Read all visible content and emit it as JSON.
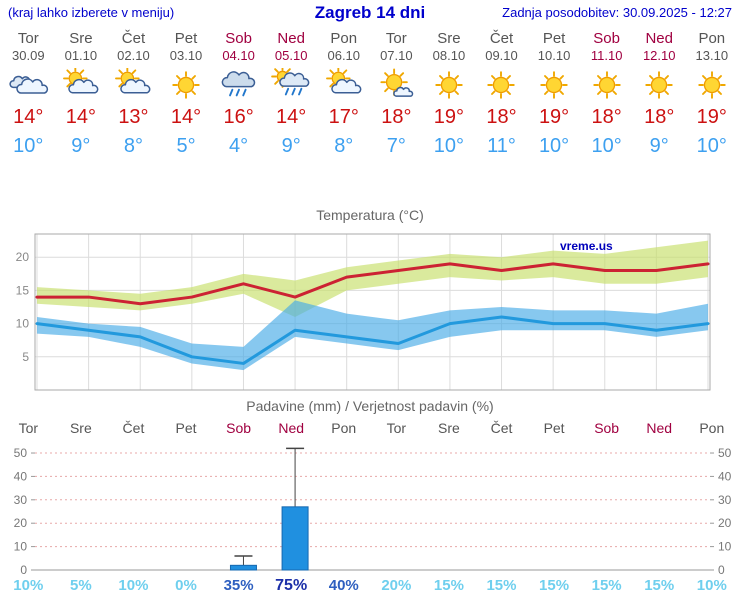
{
  "header": {
    "note": "(kraj lahko izberete v meniju)",
    "title": "Zagreb 14 dni",
    "updated": "Zadnja posodobitev: 30.09.2025 - 12:27"
  },
  "days": [
    {
      "name": "Tor",
      "date": "30.09",
      "weekend": false,
      "icon": "cloudy",
      "high": "14°",
      "low": "10°",
      "precip_prob": "10%",
      "prob_level": "low"
    },
    {
      "name": "Sre",
      "date": "01.10",
      "weekend": false,
      "icon": "partly-cloudy",
      "high": "14°",
      "low": "9°",
      "precip_prob": "5%",
      "prob_level": "low"
    },
    {
      "name": "Čet",
      "date": "02.10",
      "weekend": false,
      "icon": "partly-cloudy",
      "high": "13°",
      "low": "8°",
      "precip_prob": "10%",
      "prob_level": "low"
    },
    {
      "name": "Pet",
      "date": "03.10",
      "weekend": false,
      "icon": "sunny",
      "high": "14°",
      "low": "5°",
      "precip_prob": "0%",
      "prob_level": "low"
    },
    {
      "name": "Sob",
      "date": "04.10",
      "weekend": true,
      "icon": "rain",
      "high": "16°",
      "low": "4°",
      "precip_prob": "35%",
      "prob_level": "mid"
    },
    {
      "name": "Ned",
      "date": "05.10",
      "weekend": true,
      "icon": "sun-rain",
      "high": "14°",
      "low": "9°",
      "precip_prob": "75%",
      "prob_level": "high"
    },
    {
      "name": "Pon",
      "date": "06.10",
      "weekend": false,
      "icon": "partly-cloudy",
      "high": "17°",
      "low": "8°",
      "precip_prob": "40%",
      "prob_level": "mid"
    },
    {
      "name": "Tor",
      "date": "07.10",
      "weekend": false,
      "icon": "mostly-sunny",
      "high": "18°",
      "low": "7°",
      "precip_prob": "20%",
      "prob_level": "low"
    },
    {
      "name": "Sre",
      "date": "08.10",
      "weekend": false,
      "icon": "sunny",
      "high": "19°",
      "low": "10°",
      "precip_prob": "15%",
      "prob_level": "low"
    },
    {
      "name": "Čet",
      "date": "09.10",
      "weekend": false,
      "icon": "sunny",
      "high": "18°",
      "low": "11°",
      "precip_prob": "15%",
      "prob_level": "low"
    },
    {
      "name": "Pet",
      "date": "10.10",
      "weekend": false,
      "icon": "sunny",
      "high": "19°",
      "low": "10°",
      "precip_prob": "15%",
      "prob_level": "low"
    },
    {
      "name": "Sob",
      "date": "11.10",
      "weekend": true,
      "icon": "sunny",
      "high": "18°",
      "low": "10°",
      "precip_prob": "15%",
      "prob_level": "low"
    },
    {
      "name": "Ned",
      "date": "12.10",
      "weekend": true,
      "icon": "sunny",
      "high": "18°",
      "low": "9°",
      "precip_prob": "15%",
      "prob_level": "low"
    },
    {
      "name": "Pon",
      "date": "13.10",
      "weekend": false,
      "icon": "sunny",
      "high": "19°",
      "low": "10°",
      "precip_prob": "10%",
      "prob_level": "low"
    }
  ],
  "chart_data": [
    {
      "type": "line",
      "title": "Temperatura (°C)",
      "watermark": "vreme.us",
      "categories": [
        "Tor",
        "Sre",
        "Čet",
        "Pet",
        "Sob",
        "Ned",
        "Pon",
        "Tor",
        "Sre",
        "Čet",
        "Pet",
        "Sob",
        "Ned",
        "Pon"
      ],
      "ylim": [
        0,
        23.5
      ],
      "yticks": [
        5,
        10,
        15,
        20
      ],
      "grid": true,
      "series": [
        {
          "name": "max-temp",
          "color": "#cc2233",
          "values": [
            14,
            14,
            13,
            14,
            16,
            14,
            17,
            18,
            19,
            18,
            19,
            18,
            18,
            19
          ]
        },
        {
          "name": "min-temp",
          "color": "#2299dd",
          "values": [
            10,
            9,
            8,
            5,
            4,
            9,
            8,
            7,
            10,
            11,
            10,
            10,
            9,
            10
          ]
        }
      ],
      "bands": [
        {
          "name": "max-range",
          "color": "rgba(198,222,105,0.65)",
          "upper": [
            15.5,
            15,
            14.5,
            15.5,
            17.5,
            16.5,
            18.5,
            19.5,
            20.5,
            20,
            21,
            20.5,
            21.5,
            22.5
          ],
          "lower": [
            13,
            12.5,
            12,
            13,
            14.5,
            11,
            15,
            16,
            17,
            16.5,
            17,
            16,
            16,
            17
          ]
        },
        {
          "name": "min-range",
          "color": "rgba(70,170,230,0.65)",
          "upper": [
            11,
            10,
            9.5,
            7,
            6.5,
            13.5,
            11.5,
            10.5,
            12,
            12.5,
            12,
            12,
            11.5,
            13
          ],
          "lower": [
            8.5,
            8,
            6.5,
            4,
            3,
            8,
            7,
            6,
            8,
            9,
            9,
            9,
            8,
            9
          ]
        }
      ]
    },
    {
      "type": "bar",
      "title": "Padavine (mm) / Verjetnost padavin (%)",
      "categories": [
        "Tor",
        "Sre",
        "Čet",
        "Pet",
        "Sob",
        "Ned",
        "Pon",
        "Tor",
        "Sre",
        "Čet",
        "Pet",
        "Sob",
        "Ned",
        "Pon"
      ],
      "ylim": [
        0,
        53
      ],
      "yticks": [
        0,
        10,
        20,
        30,
        40,
        50
      ],
      "values": [
        0,
        0,
        0,
        0,
        2,
        27,
        0,
        0,
        0,
        0,
        0,
        0,
        0,
        0
      ],
      "whiskers": [
        0,
        0,
        0,
        0,
        6,
        52,
        0,
        0,
        0,
        0,
        0,
        0,
        0,
        0
      ],
      "bar_color": "#2090e0",
      "probabilities": [
        "10%",
        "5%",
        "10%",
        "0%",
        "35%",
        "75%",
        "40%",
        "20%",
        "15%",
        "15%",
        "15%",
        "15%",
        "15%",
        "10%"
      ]
    }
  ],
  "colors": {
    "header_blue": "#0000cc",
    "weekday_text": "#555555",
    "weekend_text": "#a00040",
    "high_temp": "#cc1111",
    "low_temp": "#3da0f0",
    "grid": "#dcdcdc",
    "axis": "#aaaaaa",
    "precip_grid": "#e8a8a8",
    "watermark_blue": "#0000bb",
    "prob_low": "#6fcfee",
    "prob_mid": "#2e5fc0",
    "prob_high": "#1b2fa8"
  }
}
